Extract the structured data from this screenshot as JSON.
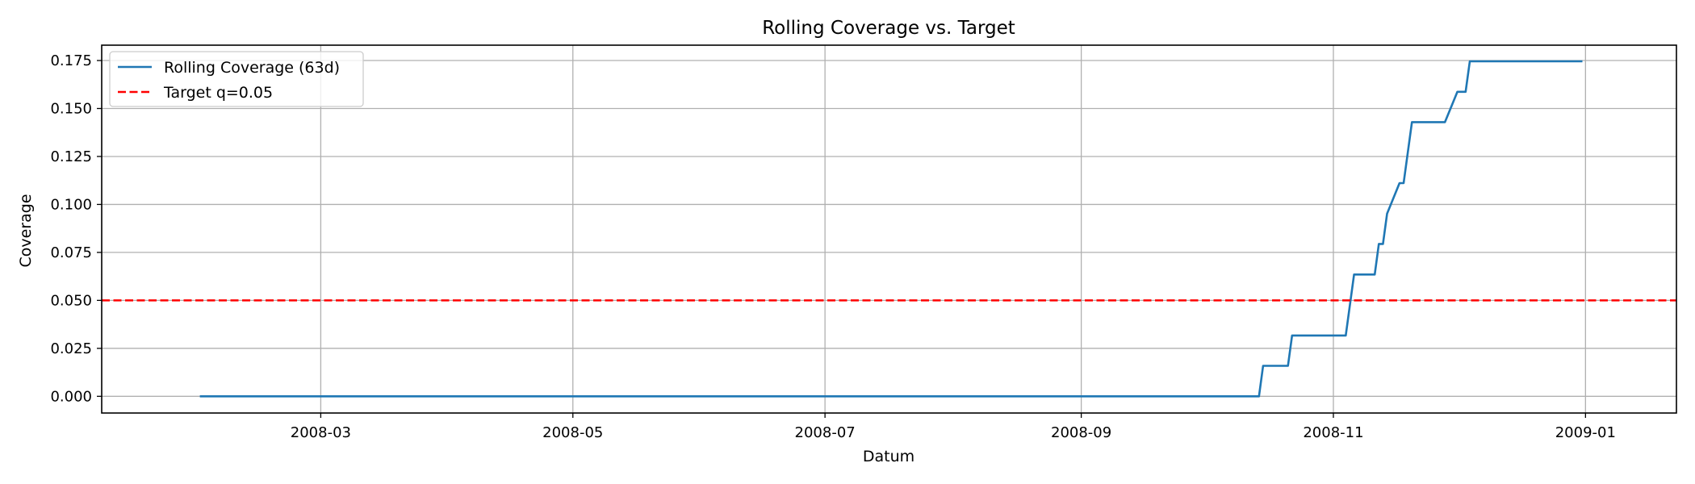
{
  "chart_data": {
    "type": "line",
    "title": "Rolling Coverage vs. Target",
    "xlabel": "Datum",
    "ylabel": "Coverage",
    "xlim": [
      "2008-01-08",
      "2009-01-23"
    ],
    "ylim": [
      -0.0087,
      0.183
    ],
    "xticks": [
      "2008-03-01",
      "2008-05-01",
      "2008-07-01",
      "2008-09-01",
      "2008-11-01",
      "2009-01-01"
    ],
    "xtick_labels": [
      "2008-03",
      "2008-05",
      "2008-07",
      "2008-09",
      "2008-11",
      "2009-01"
    ],
    "yticks": [
      0.0,
      0.025,
      0.05,
      0.075,
      0.1,
      0.125,
      0.15,
      0.175
    ],
    "ytick_labels": [
      "0.000",
      "0.025",
      "0.050",
      "0.075",
      "0.100",
      "0.125",
      "0.150",
      "0.175"
    ],
    "grid": true,
    "legend_position": "top-left",
    "series": [
      {
        "name": "Rolling Coverage (63d)",
        "color": "#1f77b4",
        "style": "solid",
        "points": [
          [
            "2008-02-01",
            0.0
          ],
          [
            "2008-10-14",
            0.0
          ],
          [
            "2008-10-15",
            0.0159
          ],
          [
            "2008-10-21",
            0.0159
          ],
          [
            "2008-10-22",
            0.0317
          ],
          [
            "2008-11-04",
            0.0317
          ],
          [
            "2008-11-06",
            0.0635
          ],
          [
            "2008-11-11",
            0.0635
          ],
          [
            "2008-11-12",
            0.0794
          ],
          [
            "2008-11-13",
            0.0794
          ],
          [
            "2008-11-14",
            0.0952
          ],
          [
            "2008-11-17",
            0.1111
          ],
          [
            "2008-11-18",
            0.1111
          ],
          [
            "2008-11-20",
            0.1429
          ],
          [
            "2008-11-28",
            0.1429
          ],
          [
            "2008-12-01",
            0.1587
          ],
          [
            "2008-12-03",
            0.1587
          ],
          [
            "2008-12-04",
            0.1746
          ],
          [
            "2008-12-31",
            0.1746
          ]
        ]
      },
      {
        "name": "Target q=0.05",
        "color": "#ff0000",
        "style": "dashed",
        "hline": 0.05
      }
    ]
  }
}
